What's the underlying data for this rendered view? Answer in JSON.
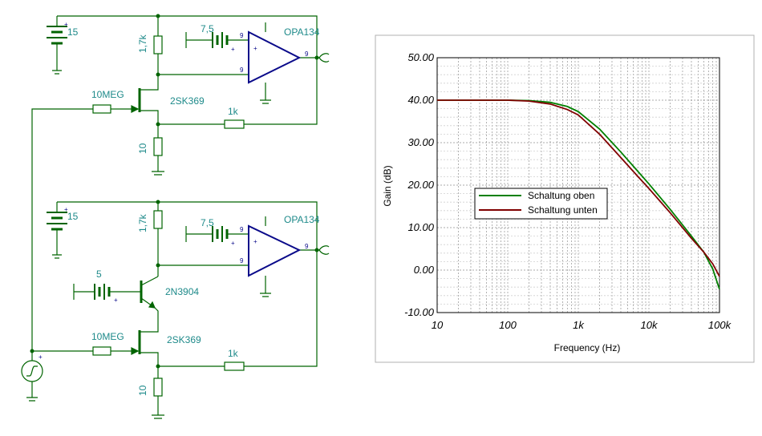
{
  "circuit": {
    "top": {
      "battery_voltage": "15",
      "resistor_drain": "1,7k",
      "resistor_gate": "10MEG",
      "jfet": "2SK369",
      "resistor_feedback": "1k",
      "resistor_source": "10",
      "ref_battery": "7,5",
      "opamp": "OPA134",
      "pin_label": "9"
    },
    "bottom": {
      "battery_voltage": "15",
      "resistor_drain": "1,7k",
      "ref_battery": "7,5",
      "opamp": "OPA134",
      "base_battery": "5",
      "bjt": "2N3904",
      "resistor_gate": "10MEG",
      "jfet": "2SK369",
      "resistor_feedback": "1k",
      "resistor_source": "10",
      "pin_label": "9"
    },
    "plus_sign": "+",
    "colors": {
      "wire": "#006400",
      "component": "#006400",
      "opamp": "#0a0a8a",
      "label": "#1e8a8a"
    }
  },
  "chart_data": {
    "type": "line",
    "xlabel": "Frequency (Hz)",
    "ylabel": "Gain (dB)",
    "xscale": "log",
    "xlim": [
      10,
      100000
    ],
    "ylim": [
      -10,
      50
    ],
    "x_ticks": [
      "10",
      "100",
      "1k",
      "10k",
      "100k"
    ],
    "y_ticks": [
      "50.00",
      "40.00",
      "30.00",
      "20.00",
      "10.00",
      "0.00",
      "-10.00"
    ],
    "grid": true,
    "legend_position": "center-left",
    "series": [
      {
        "name": "Schaltung oben",
        "color": "#008000",
        "x": [
          10,
          100,
          200,
          400,
          700,
          1000,
          2000,
          4000,
          7000,
          10000,
          20000,
          40000,
          60000,
          80000,
          100000
        ],
        "y": [
          40,
          40,
          39.9,
          39.5,
          38.5,
          37.3,
          33.2,
          27.8,
          23.2,
          20.3,
          14.3,
          8.0,
          4.2,
          0.3,
          -4.5
        ]
      },
      {
        "name": "Schaltung unten",
        "color": "#800000",
        "x": [
          10,
          100,
          200,
          400,
          700,
          1000,
          2000,
          4000,
          7000,
          10000,
          20000,
          40000,
          60000,
          80000,
          100000
        ],
        "y": [
          40,
          40,
          39.8,
          39.1,
          37.8,
          36.5,
          32.0,
          26.5,
          22.0,
          19.2,
          13.5,
          7.5,
          4.2,
          1.5,
          -1.5
        ]
      }
    ]
  }
}
